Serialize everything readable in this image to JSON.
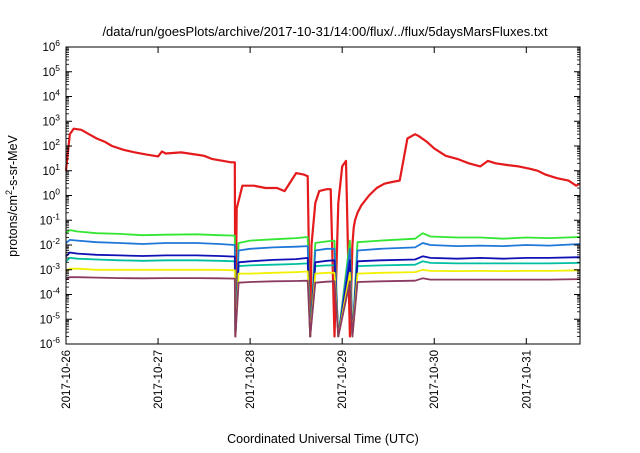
{
  "chart_data": {
    "type": "line",
    "title": "/data/run/goesPlots/archive/2017-10-31/14:00/flux/../flux/5daysMarsFluxes.txt",
    "xlabel": "Coordinated Universal Time (UTC)",
    "ylabel_parts": {
      "base": "protons/cm",
      "sup": "2",
      "rest": "-s-sr-MeV"
    },
    "x_range": [
      "2017-10-26T00:00",
      "2017-10-31T14:00"
    ],
    "x_ticks": [
      "2017-10-26",
      "2017-10-27",
      "2017-10-28",
      "2017-10-29",
      "2017-10-30",
      "2017-10-31"
    ],
    "y_scale": "log",
    "ylim": [
      1e-06,
      1000000.0
    ],
    "y_ticks": [
      {
        "value": 1e-06,
        "base": "10",
        "exp": "-6"
      },
      {
        "value": 1e-05,
        "base": "10",
        "exp": "-5"
      },
      {
        "value": 0.0001,
        "base": "10",
        "exp": "-4"
      },
      {
        "value": 0.001,
        "base": "10",
        "exp": "-3"
      },
      {
        "value": 0.01,
        "base": "10",
        "exp": "-2"
      },
      {
        "value": 0.1,
        "base": "10",
        "exp": "-1"
      },
      {
        "value": 1,
        "base": "10",
        "exp": "0"
      },
      {
        "value": 10.0,
        "base": "10",
        "exp": "1"
      },
      {
        "value": 100.0,
        "base": "10",
        "exp": "2"
      },
      {
        "value": 1000.0,
        "base": "10",
        "exp": "3"
      },
      {
        "value": 10000.0,
        "base": "10",
        "exp": "4"
      },
      {
        "value": 100000.0,
        "base": "10",
        "exp": "5"
      },
      {
        "value": 1000000.0,
        "base": "10",
        "exp": "6"
      }
    ],
    "grid": false,
    "legend": "none",
    "series": [
      {
        "color": "#e41a1c",
        "width": 2.2,
        "x": [
          "2017-10-26T00:00",
          "2017-10-26T01:00",
          "2017-10-26T02:00",
          "2017-10-26T04:00",
          "2017-10-26T06:00",
          "2017-10-26T08:00",
          "2017-10-26T10:00",
          "2017-10-26T12:00",
          "2017-10-26T15:00",
          "2017-10-26T18:00",
          "2017-10-26T21:00",
          "2017-10-27T00:00",
          "2017-10-27T01:00",
          "2017-10-27T02:00",
          "2017-10-27T06:00",
          "2017-10-27T10:00",
          "2017-10-27T12:00",
          "2017-10-27T14:00",
          "2017-10-27T17:00",
          "2017-10-27T19:00",
          "2017-10-27T20:00",
          "2017-10-27T20:10",
          "2017-10-27T20:30",
          "2017-10-27T22:00",
          "2017-10-28T01:00",
          "2017-10-28T04:00",
          "2017-10-28T07:00",
          "2017-10-28T09:00",
          "2017-10-28T12:00",
          "2017-10-28T14:00",
          "2017-10-28T15:00",
          "2017-10-28T15:40",
          "2017-10-28T16:00",
          "2017-10-28T17:00",
          "2017-10-28T18:00",
          "2017-10-28T20:00",
          "2017-10-28T21:00",
          "2017-10-28T22:00",
          "2017-10-28T23:00",
          "2017-10-29T00:00",
          "2017-10-29T01:00",
          "2017-10-29T02:00",
          "2017-10-29T02:40",
          "2017-10-29T03:00",
          "2017-10-29T03:20",
          "2017-10-29T04:00",
          "2017-10-29T05:00",
          "2017-10-29T07:00",
          "2017-10-29T09:00",
          "2017-10-29T11:00",
          "2017-10-29T13:00",
          "2017-10-29T15:00",
          "2017-10-29T17:00",
          "2017-10-29T19:00",
          "2017-10-29T20:00",
          "2017-10-29T22:00",
          "2017-10-30T00:00",
          "2017-10-30T03:00",
          "2017-10-30T06:00",
          "2017-10-30T09:00",
          "2017-10-30T12:00",
          "2017-10-30T14:00",
          "2017-10-30T16:00",
          "2017-10-30T19:00",
          "2017-10-30T22:00",
          "2017-10-31T01:00",
          "2017-10-31T03:00",
          "2017-10-31T05:00",
          "2017-10-31T08:00",
          "2017-10-31T11:00",
          "2017-10-31T13:00",
          "2017-10-31T14:00"
        ],
        "y": [
          10,
          300,
          500,
          450,
          300,
          200,
          150,
          100,
          70,
          55,
          45,
          38,
          60,
          50,
          55,
          45,
          40,
          30,
          25,
          22,
          22,
          2e-06,
          0.3,
          2.5,
          2.5,
          2,
          2,
          1.5,
          8,
          7,
          6,
          2e-06,
          0.01,
          0.5,
          1.5,
          1.8,
          1.8,
          2e-06,
          0.5,
          15,
          25,
          2e-06,
          0.01,
          0.05,
          0.1,
          0.2,
          0.4,
          1,
          2,
          3,
          3.5,
          4,
          200,
          300,
          250,
          150,
          80,
          40,
          30,
          20,
          15,
          25,
          20,
          17,
          15,
          12,
          10,
          7,
          5,
          4,
          2.5,
          3
        ]
      },
      {
        "color": "#32e632",
        "width": 1.8,
        "x": [
          "2017-10-26T00:00",
          "2017-10-26T01:00",
          "2017-10-26T03:00",
          "2017-10-26T08:00",
          "2017-10-26T14:00",
          "2017-10-26T20:00",
          "2017-10-27T02:00",
          "2017-10-27T10:00",
          "2017-10-27T16:00",
          "2017-10-27T20:00",
          "2017-10-27T20:10",
          "2017-10-27T21:00",
          "2017-10-28T00:00",
          "2017-10-28T06:00",
          "2017-10-28T12:00",
          "2017-10-28T15:00",
          "2017-10-28T15:40",
          "2017-10-28T17:00",
          "2017-10-28T20:00",
          "2017-10-28T22:00",
          "2017-10-28T23:00",
          "2017-10-29T02:00",
          "2017-10-29T02:40",
          "2017-10-29T04:00",
          "2017-10-29T10:00",
          "2017-10-29T19:00",
          "2017-10-29T21:00",
          "2017-10-29T23:00",
          "2017-10-30T06:00",
          "2017-10-30T12:00",
          "2017-10-30T18:00",
          "2017-10-31T00:00",
          "2017-10-31T06:00",
          "2017-10-31T14:00"
        ],
        "y": [
          0.03,
          0.04,
          0.035,
          0.03,
          0.028,
          0.025,
          0.026,
          0.027,
          0.025,
          0.024,
          2e-06,
          0.012,
          0.015,
          0.017,
          0.019,
          0.021,
          2e-06,
          0.012,
          0.014,
          0.015,
          2e-06,
          0.015,
          2e-06,
          0.013,
          0.015,
          0.018,
          0.03,
          0.022,
          0.02,
          0.02,
          0.018,
          0.02,
          0.019,
          0.021
        ]
      },
      {
        "color": "#1f78d8",
        "width": 1.8,
        "x": [
          "2017-10-26T00:00",
          "2017-10-26T01:00",
          "2017-10-26T03:00",
          "2017-10-26T08:00",
          "2017-10-26T14:00",
          "2017-10-26T20:00",
          "2017-10-27T02:00",
          "2017-10-27T10:00",
          "2017-10-27T16:00",
          "2017-10-27T20:00",
          "2017-10-27T20:10",
          "2017-10-27T21:00",
          "2017-10-28T00:00",
          "2017-10-28T06:00",
          "2017-10-28T12:00",
          "2017-10-28T15:00",
          "2017-10-28T15:40",
          "2017-10-28T17:00",
          "2017-10-28T20:00",
          "2017-10-28T22:00",
          "2017-10-28T23:00",
          "2017-10-29T02:00",
          "2017-10-29T02:40",
          "2017-10-29T04:00",
          "2017-10-29T10:00",
          "2017-10-29T19:00",
          "2017-10-29T21:00",
          "2017-10-29T23:00",
          "2017-10-30T06:00",
          "2017-10-30T12:00",
          "2017-10-30T18:00",
          "2017-10-31T00:00",
          "2017-10-31T06:00",
          "2017-10-31T14:00"
        ],
        "y": [
          0.012,
          0.016,
          0.015,
          0.013,
          0.012,
          0.011,
          0.012,
          0.012,
          0.011,
          0.01,
          2e-06,
          0.006,
          0.007,
          0.008,
          0.0085,
          0.009,
          2e-06,
          0.006,
          0.007,
          0.007,
          2e-06,
          0.007,
          2e-06,
          0.006,
          0.007,
          0.008,
          0.012,
          0.01,
          0.009,
          0.0095,
          0.009,
          0.01,
          0.0095,
          0.011
        ]
      },
      {
        "color": "#00bfa0",
        "width": 1.8,
        "x": [
          "2017-10-26T00:00",
          "2017-10-26T01:00",
          "2017-10-26T03:00",
          "2017-10-26T08:00",
          "2017-10-26T14:00",
          "2017-10-26T20:00",
          "2017-10-27T02:00",
          "2017-10-27T10:00",
          "2017-10-27T16:00",
          "2017-10-27T20:00",
          "2017-10-27T20:10",
          "2017-10-27T21:00",
          "2017-10-28T00:00",
          "2017-10-28T06:00",
          "2017-10-28T12:00",
          "2017-10-28T15:00",
          "2017-10-28T15:40",
          "2017-10-28T17:00",
          "2017-10-28T20:00",
          "2017-10-28T22:00",
          "2017-10-28T23:00",
          "2017-10-29T02:00",
          "2017-10-29T02:40",
          "2017-10-29T04:00",
          "2017-10-29T10:00",
          "2017-10-29T19:00",
          "2017-10-29T21:00",
          "2017-10-29T23:00",
          "2017-10-30T06:00",
          "2017-10-30T12:00",
          "2017-10-30T18:00",
          "2017-10-31T00:00",
          "2017-10-31T06:00",
          "2017-10-31T14:00"
        ],
        "y": [
          0.0022,
          0.003,
          0.0028,
          0.0026,
          0.0024,
          0.0023,
          0.0024,
          0.0024,
          0.0023,
          0.0022,
          2e-06,
          0.0014,
          0.0015,
          0.0016,
          0.0017,
          0.0018,
          2e-06,
          0.0014,
          0.0015,
          0.0015,
          2e-06,
          0.0015,
          2e-06,
          0.0014,
          0.0015,
          0.0016,
          0.0022,
          0.0019,
          0.0018,
          0.0018,
          0.0018,
          0.0018,
          0.0018,
          0.0019
        ]
      },
      {
        "color": "#1010b4",
        "width": 1.8,
        "x": [
          "2017-10-26T00:00",
          "2017-10-26T01:00",
          "2017-10-26T03:00",
          "2017-10-26T08:00",
          "2017-10-26T14:00",
          "2017-10-26T20:00",
          "2017-10-27T02:00",
          "2017-10-27T10:00",
          "2017-10-27T16:00",
          "2017-10-27T20:00",
          "2017-10-27T20:10",
          "2017-10-27T21:00",
          "2017-10-28T00:00",
          "2017-10-28T06:00",
          "2017-10-28T12:00",
          "2017-10-28T15:00",
          "2017-10-28T15:40",
          "2017-10-28T17:00",
          "2017-10-28T20:00",
          "2017-10-28T22:00",
          "2017-10-28T23:00",
          "2017-10-29T02:00",
          "2017-10-29T02:40",
          "2017-10-29T04:00",
          "2017-10-29T10:00",
          "2017-10-29T19:00",
          "2017-10-29T21:00",
          "2017-10-29T23:00",
          "2017-10-30T06:00",
          "2017-10-30T12:00",
          "2017-10-30T18:00",
          "2017-10-31T00:00",
          "2017-10-31T06:00",
          "2017-10-31T14:00"
        ],
        "y": [
          0.0035,
          0.005,
          0.0045,
          0.004,
          0.0038,
          0.0036,
          0.0038,
          0.0038,
          0.0036,
          0.0034,
          2e-06,
          0.002,
          0.0022,
          0.0025,
          0.0027,
          0.003,
          2e-06,
          0.002,
          0.0023,
          0.0024,
          2e-06,
          0.0024,
          2e-06,
          0.0022,
          0.0024,
          0.0026,
          0.0035,
          0.003,
          0.0028,
          0.003,
          0.0028,
          0.003,
          0.003,
          0.0032
        ]
      },
      {
        "color": "#f0f000",
        "width": 1.8,
        "x": [
          "2017-10-26T00:00",
          "2017-10-26T01:00",
          "2017-10-26T03:00",
          "2017-10-26T08:00",
          "2017-10-26T14:00",
          "2017-10-26T20:00",
          "2017-10-27T02:00",
          "2017-10-27T10:00",
          "2017-10-27T16:00",
          "2017-10-27T20:00",
          "2017-10-27T20:10",
          "2017-10-27T21:00",
          "2017-10-28T00:00",
          "2017-10-28T06:00",
          "2017-10-28T12:00",
          "2017-10-28T15:00",
          "2017-10-28T15:40",
          "2017-10-28T17:00",
          "2017-10-28T20:00",
          "2017-10-28T22:00",
          "2017-10-28T23:00",
          "2017-10-29T02:00",
          "2017-10-29T02:40",
          "2017-10-29T04:00",
          "2017-10-29T10:00",
          "2017-10-29T19:00",
          "2017-10-29T21:00",
          "2017-10-29T23:00",
          "2017-10-30T06:00",
          "2017-10-30T12:00",
          "2017-10-30T18:00",
          "2017-10-31T00:00",
          "2017-10-31T06:00",
          "2017-10-31T14:00"
        ],
        "y": [
          0.0009,
          0.0011,
          0.0011,
          0.001,
          0.001,
          0.001,
          0.001,
          0.001,
          0.001,
          0.00095,
          2e-06,
          0.0007,
          0.0007,
          0.00075,
          0.0008,
          0.00085,
          2e-06,
          0.0007,
          0.00075,
          0.00075,
          2e-06,
          0.00075,
          2e-06,
          0.0007,
          0.00075,
          0.0008,
          0.001,
          0.0009,
          0.00088,
          0.0009,
          0.00088,
          0.0009,
          0.0009,
          0.00095
        ]
      },
      {
        "color": "#8b3a62",
        "width": 1.8,
        "x": [
          "2017-10-26T00:00",
          "2017-10-26T01:00",
          "2017-10-26T03:00",
          "2017-10-26T08:00",
          "2017-10-26T14:00",
          "2017-10-26T20:00",
          "2017-10-27T02:00",
          "2017-10-27T10:00",
          "2017-10-27T16:00",
          "2017-10-27T20:00",
          "2017-10-27T20:10",
          "2017-10-27T21:00",
          "2017-10-28T00:00",
          "2017-10-28T06:00",
          "2017-10-28T12:00",
          "2017-10-28T15:00",
          "2017-10-28T15:40",
          "2017-10-28T17:00",
          "2017-10-28T20:00",
          "2017-10-28T22:00",
          "2017-10-28T23:00",
          "2017-10-29T02:00",
          "2017-10-29T02:40",
          "2017-10-29T04:00",
          "2017-10-29T10:00",
          "2017-10-29T19:00",
          "2017-10-29T21:00",
          "2017-10-29T23:00",
          "2017-10-30T06:00",
          "2017-10-30T12:00",
          "2017-10-30T18:00",
          "2017-10-31T00:00",
          "2017-10-31T06:00",
          "2017-10-31T14:00"
        ],
        "y": [
          0.0004,
          0.0005,
          0.0005,
          0.00048,
          0.00046,
          0.00045,
          0.00046,
          0.00046,
          0.00045,
          0.00044,
          2e-06,
          0.0003,
          0.00032,
          0.00034,
          0.00035,
          0.00036,
          2e-06,
          0.0003,
          0.00033,
          0.00034,
          2e-06,
          0.00034,
          2e-06,
          0.00032,
          0.00034,
          0.00036,
          0.00045,
          0.0004,
          0.0004,
          0.0004,
          0.0004,
          0.0004,
          0.0004,
          0.00042
        ]
      }
    ]
  }
}
